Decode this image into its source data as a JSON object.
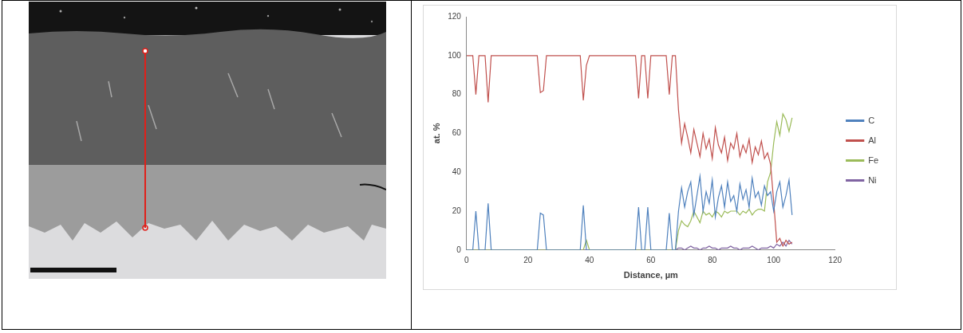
{
  "chart_data": {
    "type": "line",
    "xlabel": "Distance, µm",
    "ylabel": "at. %",
    "xlim": [
      0,
      120
    ],
    "xticks": [
      0,
      20,
      40,
      60,
      80,
      100,
      120
    ],
    "ylim": [
      0,
      120
    ],
    "yticks": [
      0,
      20,
      40,
      60,
      80,
      100,
      120
    ],
    "grid": false,
    "legend": "right",
    "x": [
      0,
      1,
      2,
      3,
      4,
      5,
      6,
      7,
      8,
      9,
      10,
      11,
      12,
      13,
      14,
      15,
      16,
      17,
      18,
      19,
      20,
      21,
      22,
      23,
      24,
      25,
      26,
      27,
      28,
      29,
      30,
      31,
      32,
      33,
      34,
      35,
      36,
      37,
      38,
      39,
      40,
      41,
      42,
      43,
      44,
      45,
      46,
      47,
      48,
      49,
      50,
      51,
      52,
      53,
      54,
      55,
      56,
      57,
      58,
      59,
      60,
      61,
      62,
      63,
      64,
      65,
      66,
      67,
      68,
      69,
      70,
      71,
      72,
      73,
      74,
      75,
      76,
      77,
      78,
      79,
      80,
      81,
      82,
      83,
      84,
      85,
      86,
      87,
      88,
      89,
      90,
      91,
      92,
      93,
      94,
      95,
      96,
      97,
      98,
      99,
      100,
      101,
      102,
      103,
      104,
      105,
      106
    ],
    "series": [
      {
        "name": "C",
        "color": "#4f81bd",
        "values": [
          0,
          0,
          0,
          20,
          0,
          0,
          0,
          24,
          0,
          0,
          0,
          0,
          0,
          0,
          0,
          0,
          0,
          0,
          0,
          0,
          0,
          0,
          0,
          0,
          19,
          18,
          0,
          0,
          0,
          0,
          0,
          0,
          0,
          0,
          0,
          0,
          0,
          0,
          23,
          0,
          0,
          0,
          0,
          0,
          0,
          0,
          0,
          0,
          0,
          0,
          0,
          0,
          0,
          0,
          0,
          0,
          22,
          0,
          0,
          22,
          0,
          0,
          0,
          0,
          0,
          0,
          19,
          0,
          0,
          20,
          32,
          22,
          30,
          35,
          18,
          28,
          38,
          20,
          30,
          24,
          36,
          17,
          27,
          33,
          22,
          35,
          25,
          28,
          20,
          34,
          26,
          31,
          22,
          37,
          27,
          30,
          23,
          33,
          28,
          30,
          20,
          30,
          35,
          22,
          28,
          36,
          18
        ]
      },
      {
        "name": "Al",
        "color": "#c0504d",
        "values": [
          100,
          100,
          100,
          80,
          100,
          100,
          100,
          76,
          100,
          100,
          100,
          100,
          100,
          100,
          100,
          100,
          100,
          100,
          100,
          100,
          100,
          100,
          100,
          100,
          81,
          82,
          100,
          100,
          100,
          100,
          100,
          100,
          100,
          100,
          100,
          100,
          100,
          100,
          77,
          95,
          100,
          100,
          100,
          100,
          100,
          100,
          100,
          100,
          100,
          100,
          100,
          100,
          100,
          100,
          100,
          100,
          78,
          100,
          100,
          78,
          100,
          100,
          100,
          100,
          100,
          100,
          80,
          100,
          100,
          72,
          55,
          65,
          58,
          50,
          62,
          55,
          48,
          60,
          52,
          57,
          47,
          63,
          54,
          50,
          58,
          46,
          55,
          52,
          60,
          48,
          54,
          50,
          57,
          45,
          53,
          49,
          56,
          47,
          50,
          44,
          25,
          4,
          6,
          2,
          5,
          3,
          4
        ]
      },
      {
        "name": "Fe",
        "color": "#9bbb59",
        "values": [
          0,
          0,
          0,
          0,
          0,
          0,
          0,
          0,
          0,
          0,
          0,
          0,
          0,
          0,
          0,
          0,
          0,
          0,
          0,
          0,
          0,
          0,
          0,
          0,
          0,
          0,
          0,
          0,
          0,
          0,
          0,
          0,
          0,
          0,
          0,
          0,
          0,
          0,
          0,
          5,
          0,
          0,
          0,
          0,
          0,
          0,
          0,
          0,
          0,
          0,
          0,
          0,
          0,
          0,
          0,
          0,
          0,
          0,
          0,
          0,
          0,
          0,
          0,
          0,
          0,
          0,
          0,
          0,
          0,
          10,
          15,
          13,
          12,
          15,
          20,
          17,
          14,
          20,
          18,
          19,
          17,
          20,
          19,
          17,
          20,
          19,
          20,
          20,
          20,
          18,
          20,
          19,
          21,
          18,
          20,
          21,
          21,
          20,
          35,
          40,
          55,
          66,
          59,
          70,
          67,
          61,
          68
        ]
      },
      {
        "name": "Ni",
        "color": "#8064a2",
        "values": [
          0,
          0,
          0,
          0,
          0,
          0,
          0,
          0,
          0,
          0,
          0,
          0,
          0,
          0,
          0,
          0,
          0,
          0,
          0,
          0,
          0,
          0,
          0,
          0,
          0,
          0,
          0,
          0,
          0,
          0,
          0,
          0,
          0,
          0,
          0,
          0,
          0,
          0,
          0,
          0,
          0,
          0,
          0,
          0,
          0,
          0,
          0,
          0,
          0,
          0,
          0,
          0,
          0,
          0,
          0,
          0,
          0,
          0,
          0,
          0,
          0,
          0,
          0,
          0,
          0,
          0,
          0,
          0,
          0,
          1,
          1,
          0,
          1,
          2,
          1,
          1,
          0,
          1,
          1,
          2,
          1,
          1,
          0,
          1,
          1,
          1,
          2,
          1,
          1,
          0,
          1,
          1,
          1,
          2,
          1,
          0,
          1,
          1,
          1,
          2,
          1,
          3,
          2,
          4,
          2,
          5,
          3
        ]
      }
    ]
  }
}
